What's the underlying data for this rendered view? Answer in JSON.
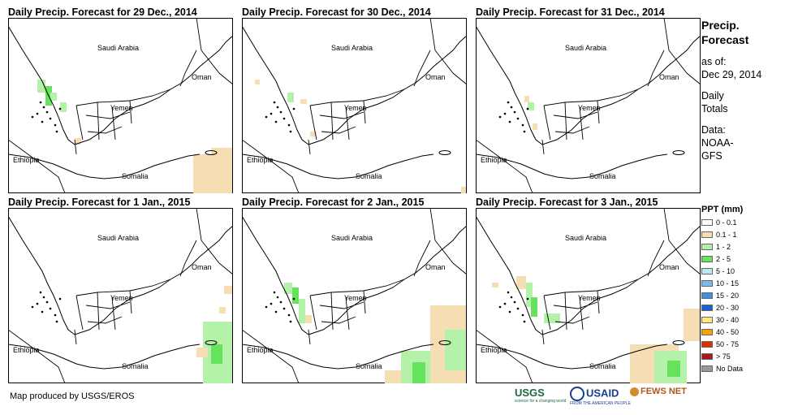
{
  "panels": [
    {
      "title": "Daily Precip. Forecast for 29 Dec., 2014"
    },
    {
      "title": "Daily Precip. Forecast for 30 Dec., 2014"
    },
    {
      "title": "Daily Precip. Forecast for 31 Dec., 2014"
    },
    {
      "title": "Daily Precip. Forecast for 1 Jan., 2015"
    },
    {
      "title": "Daily Precip. Forecast for 2 Jan., 2015"
    },
    {
      "title": "Daily Precip. Forecast for 3 Jan., 2015"
    }
  ],
  "map_labels": {
    "saudi": "Saudi Arabia",
    "oman": "Oman",
    "yemen": "Yemen",
    "ethiopia": "Ethiopia",
    "somalia": "Somalia"
  },
  "side": {
    "title1": "Precip.",
    "title2": "Forecast",
    "asof": "as of:",
    "date": "Dec 29, 2014",
    "daily1": "Daily",
    "daily2": "Totals",
    "data1": "Data:",
    "data2": "NOAA-",
    "data3": "GFS"
  },
  "legend": {
    "title": "PPT (mm)",
    "items": [
      {
        "label": "0 - 0.1",
        "color": "#ffffff"
      },
      {
        "label": "0.1 - 1",
        "color": "#f5deb3"
      },
      {
        "label": "1 - 2",
        "color": "#b3f2a8"
      },
      {
        "label": "2 - 5",
        "color": "#66e25c"
      },
      {
        "label": "5 - 10",
        "color": "#b8ecf5"
      },
      {
        "label": "10 - 15",
        "color": "#7fb8ec"
      },
      {
        "label": "15 - 20",
        "color": "#3f8de6"
      },
      {
        "label": "20 - 30",
        "color": "#1a5fd6"
      },
      {
        "label": "30 - 40",
        "color": "#ffe97a"
      },
      {
        "label": "40 - 50",
        "color": "#f5a300"
      },
      {
        "label": "50 - 75",
        "color": "#e32a00"
      },
      {
        "label": "> 75",
        "color": "#a81a1a"
      },
      {
        "label": "No Data",
        "color": "#999999"
      }
    ]
  },
  "credit": "Map produced by USGS/EROS",
  "logos": {
    "usgs": "USGS",
    "usgs_tag": "science for a changing world",
    "usaid": "USAID",
    "usaid_tag": "FROM THE AMERICAN PEOPLE",
    "fews": "FEWS NET"
  }
}
